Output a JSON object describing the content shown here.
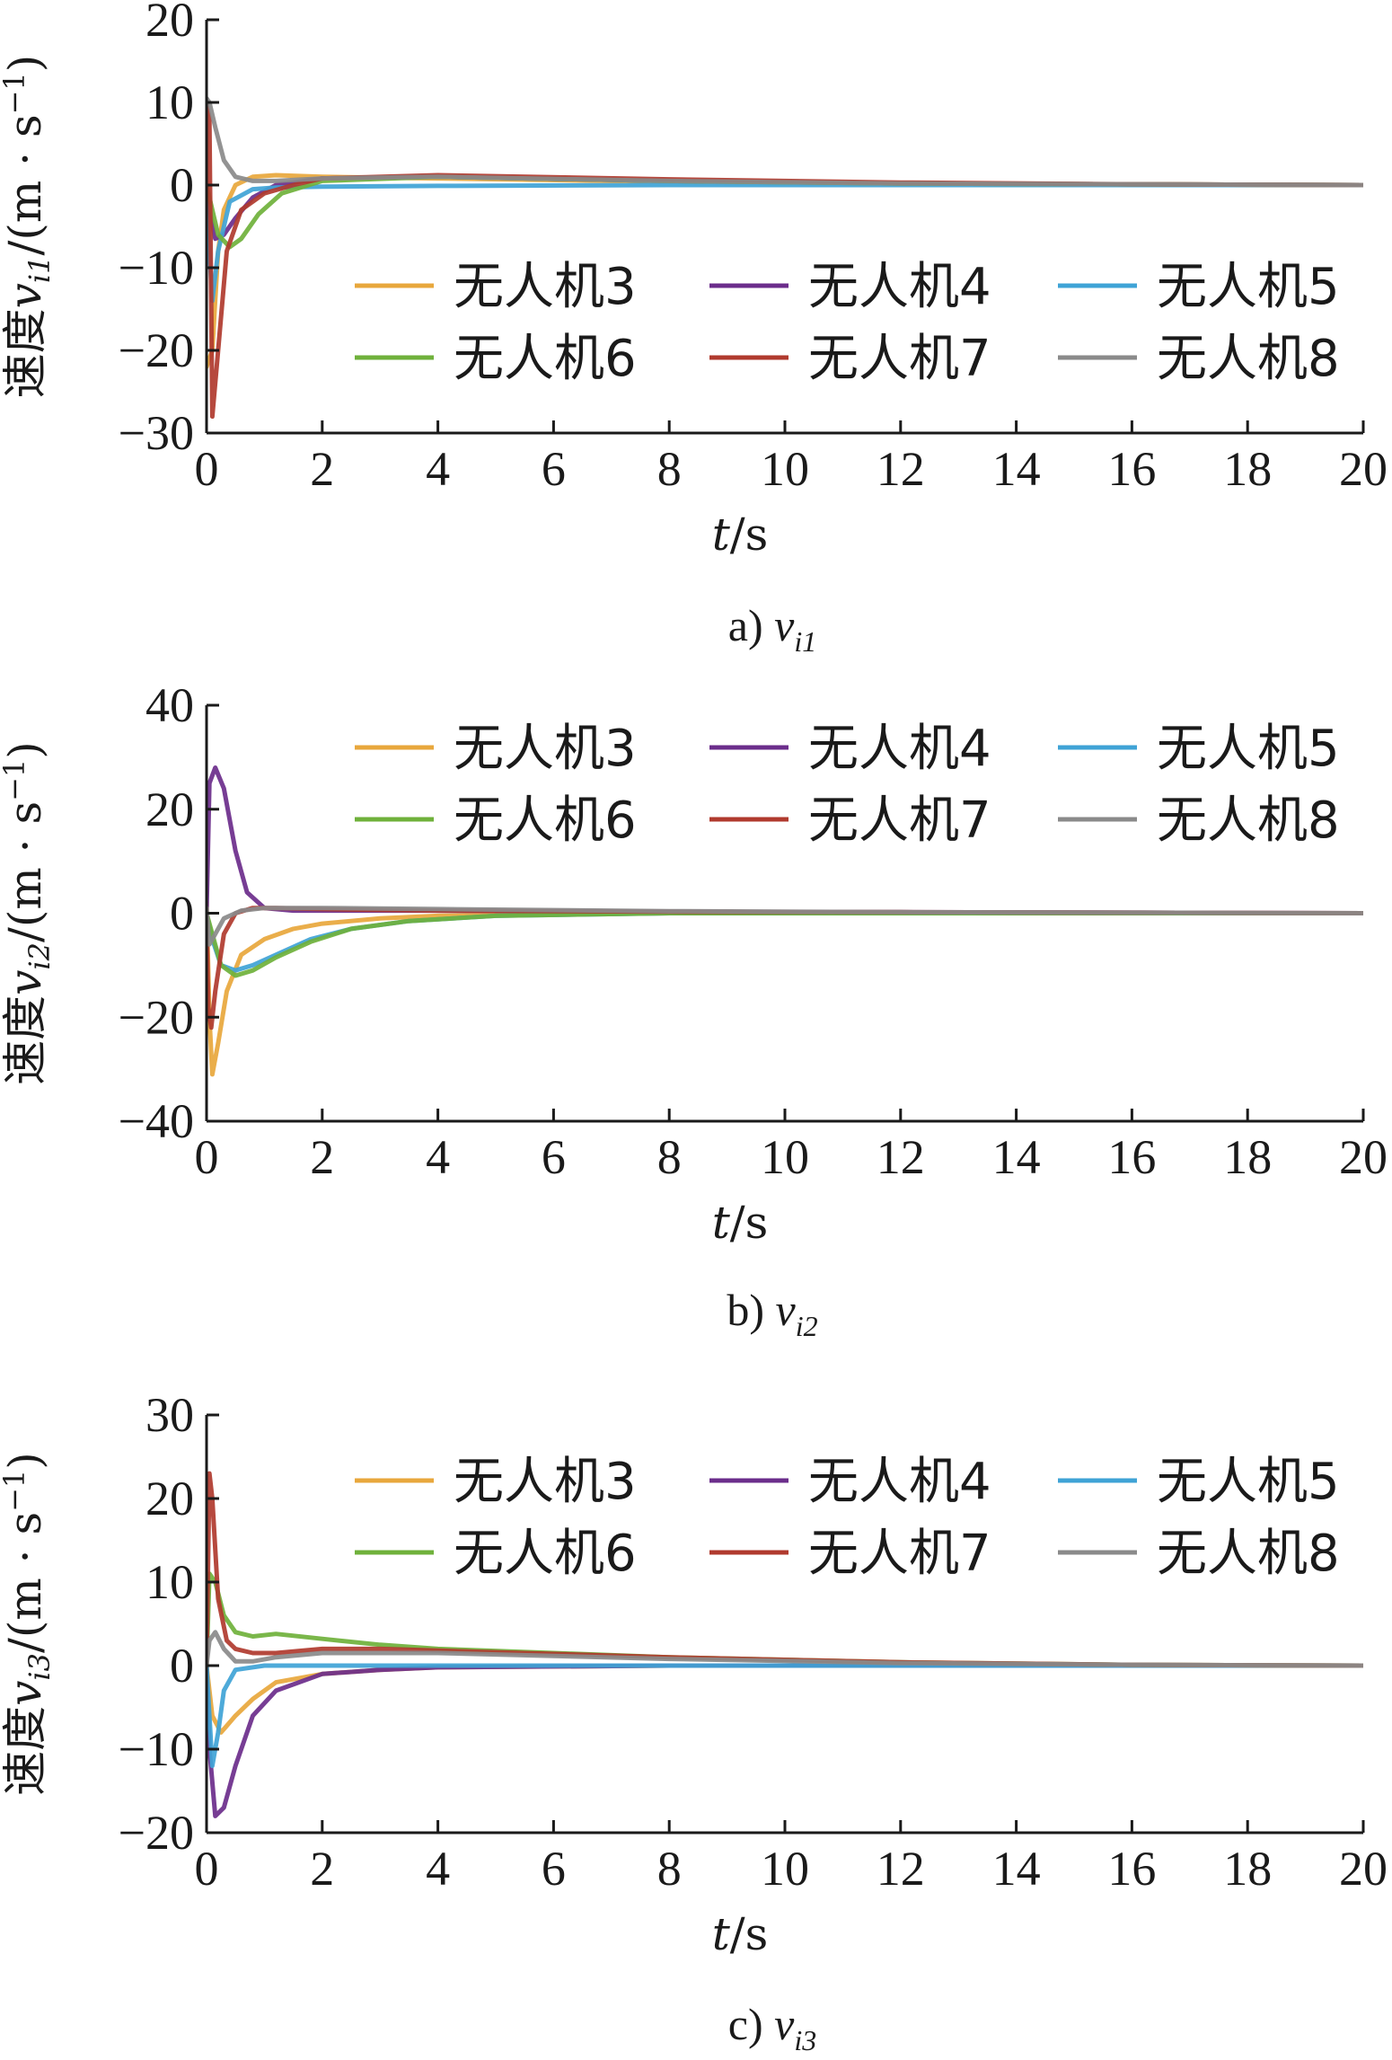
{
  "colors": {
    "uav3": "#e8a73c",
    "uav4": "#6b2d8b",
    "uav5": "#3fa3d6",
    "uav6": "#6fb13b",
    "uav7": "#b03a2e",
    "uav8": "#8a8a8a",
    "axis": "#1a1a1a"
  },
  "chart_data": [
    {
      "type": "line",
      "panel": "a",
      "caption_prefix": "a) ",
      "caption_var": "v",
      "caption_sub": "i1",
      "ylabel_prefix": "速度",
      "ylabel_var": "v",
      "ylabel_sub": "i1",
      "ylabel_unit": "/(m · s",
      "ylabel_unit_sup": "−1",
      "ylabel_close": ")",
      "xlabel_var": "t",
      "xlabel_unit": "/s",
      "xlim": [
        0,
        20
      ],
      "ylim": [
        -30,
        20
      ],
      "xticks": [
        "0",
        "2",
        "4",
        "6",
        "8",
        "10",
        "12",
        "14",
        "16",
        "18",
        "20"
      ],
      "yticks": [
        "−30",
        "−20",
        "−10",
        "0",
        "10",
        "20"
      ],
      "ytick_values": [
        -30,
        -20,
        -10,
        0,
        10,
        20
      ],
      "legend_position": "center-right",
      "series": [
        {
          "name": "无人机3",
          "color_key": "uav3",
          "x": [
            0,
            0.1,
            0.2,
            0.3,
            0.5,
            0.8,
            1.2,
            2,
            4,
            8,
            12,
            16,
            20
          ],
          "y": [
            -22,
            -20,
            -8,
            -3,
            0,
            1,
            1.2,
            1,
            0.8,
            0.4,
            0.2,
            0.1,
            0
          ]
        },
        {
          "name": "无人机4",
          "color_key": "uav4",
          "x": [
            0,
            0.05,
            0.15,
            0.3,
            0.5,
            0.8,
            1.2,
            2,
            4,
            8,
            12,
            16,
            20
          ],
          "y": [
            0,
            -3,
            -6.5,
            -6,
            -4,
            -1.5,
            0,
            0.8,
            1,
            0.5,
            0.2,
            0.1,
            0
          ]
        },
        {
          "name": "无人机5",
          "color_key": "uav5",
          "x": [
            0,
            0.05,
            0.1,
            0.2,
            0.4,
            0.8,
            1.2,
            2,
            4,
            8,
            12,
            16,
            20
          ],
          "y": [
            0,
            -8,
            -14,
            -8,
            -2,
            -0.5,
            -0.3,
            -0.2,
            -0.1,
            0,
            0,
            0,
            0
          ]
        },
        {
          "name": "无人机6",
          "color_key": "uav6",
          "x": [
            0,
            0.1,
            0.2,
            0.4,
            0.6,
            0.9,
            1.3,
            2,
            4,
            8,
            12,
            16,
            20
          ],
          "y": [
            0,
            -3,
            -6,
            -7.5,
            -6.5,
            -3.5,
            -1,
            0.5,
            1,
            0.5,
            0.2,
            0.1,
            0
          ]
        },
        {
          "name": "无人机7",
          "color_key": "uav7",
          "x": [
            0,
            0.05,
            0.1,
            0.2,
            0.35,
            0.6,
            1,
            1.5,
            2,
            4,
            8,
            12,
            16,
            20
          ],
          "y": [
            10,
            8,
            -28,
            -20,
            -8,
            -3,
            -1,
            0,
            0.8,
            1.2,
            0.7,
            0.3,
            0.1,
            0
          ]
        },
        {
          "name": "无人机8",
          "color_key": "uav8",
          "x": [
            0,
            0.05,
            0.15,
            0.3,
            0.5,
            0.8,
            1.2,
            2,
            4,
            8,
            12,
            16,
            20
          ],
          "y": [
            10.5,
            10,
            7,
            3,
            1,
            0.5,
            0.5,
            0.8,
            1,
            0.5,
            0.2,
            0.1,
            0
          ]
        }
      ]
    },
    {
      "type": "line",
      "panel": "b",
      "caption_prefix": "b) ",
      "caption_var": "v",
      "caption_sub": "i2",
      "ylabel_prefix": "速度",
      "ylabel_var": "v",
      "ylabel_sub": "i2",
      "ylabel_unit": "/(m · s",
      "ylabel_unit_sup": "−1",
      "ylabel_close": ")",
      "xlabel_var": "t",
      "xlabel_unit": "/s",
      "xlim": [
        0,
        20
      ],
      "ylim": [
        -40,
        40
      ],
      "xticks": [
        "0",
        "2",
        "4",
        "6",
        "8",
        "10",
        "12",
        "14",
        "16",
        "18",
        "20"
      ],
      "yticks": [
        "−40",
        "−20",
        "0",
        "20",
        "40"
      ],
      "ytick_values": [
        -40,
        -20,
        0,
        20,
        40
      ],
      "legend_position": "top-right",
      "series": [
        {
          "name": "无人机3",
          "color_key": "uav3",
          "x": [
            0,
            0.05,
            0.1,
            0.2,
            0.35,
            0.6,
            1,
            1.5,
            2,
            3,
            4,
            8,
            12,
            16,
            20
          ],
          "y": [
            2,
            -20,
            -31,
            -25,
            -15,
            -8,
            -5,
            -3,
            -2,
            -1,
            -0.5,
            0,
            0,
            0,
            0
          ]
        },
        {
          "name": "无人机4",
          "color_key": "uav4",
          "x": [
            0,
            0.05,
            0.15,
            0.3,
            0.5,
            0.7,
            1,
            1.5,
            2,
            4,
            8,
            12,
            16,
            20
          ],
          "y": [
            0,
            25,
            28,
            24,
            12,
            4,
            1,
            0.5,
            0.5,
            0.5,
            0.3,
            0.2,
            0.1,
            0
          ]
        },
        {
          "name": "无人机5",
          "color_key": "uav5",
          "x": [
            0,
            0.1,
            0.25,
            0.5,
            0.8,
            1.2,
            1.8,
            2.5,
            3.5,
            5,
            8,
            12,
            16,
            20
          ],
          "y": [
            0,
            -5,
            -10,
            -11,
            -10,
            -8,
            -5,
            -3,
            -1.5,
            -0.5,
            0,
            0,
            0,
            0
          ]
        },
        {
          "name": "无人机6",
          "color_key": "uav6",
          "x": [
            0,
            0.1,
            0.25,
            0.5,
            0.8,
            1.2,
            1.8,
            2.5,
            3.5,
            5,
            8,
            12,
            16,
            20
          ],
          "y": [
            0,
            -4,
            -10,
            -12,
            -11,
            -8.5,
            -5.5,
            -3,
            -1.5,
            -0.5,
            0,
            0,
            0,
            0
          ]
        },
        {
          "name": "无人机7",
          "color_key": "uav7",
          "x": [
            0,
            0.03,
            0.08,
            0.15,
            0.3,
            0.5,
            0.8,
            1.2,
            2,
            4,
            8,
            12,
            16,
            20
          ],
          "y": [
            0,
            -18,
            -22,
            -15,
            -4,
            0,
            1,
            1,
            0.8,
            0.5,
            0.3,
            0.2,
            0.1,
            0
          ]
        },
        {
          "name": "无人机8",
          "color_key": "uav8",
          "x": [
            0,
            0.05,
            0.15,
            0.3,
            0.6,
            1,
            2,
            4,
            8,
            12,
            16,
            20
          ],
          "y": [
            1,
            -6,
            -4,
            -1,
            0.5,
            1,
            1,
            0.8,
            0.4,
            0.2,
            0.1,
            0
          ]
        }
      ]
    },
    {
      "type": "line",
      "panel": "c",
      "caption_prefix": "c) ",
      "caption_var": "v",
      "caption_sub": "i3",
      "ylabel_prefix": "速度",
      "ylabel_var": "v",
      "ylabel_sub": "i3",
      "ylabel_unit": "/(m · s",
      "ylabel_unit_sup": "−1",
      "ylabel_close": ")",
      "xlabel_var": "t",
      "xlabel_unit": "/s",
      "xlim": [
        0,
        20
      ],
      "ylim": [
        -20,
        30
      ],
      "xticks": [
        "0",
        "2",
        "4",
        "6",
        "8",
        "10",
        "12",
        "14",
        "16",
        "18",
        "20"
      ],
      "yticks": [
        "−20",
        "−10",
        "0",
        "10",
        "20",
        "30"
      ],
      "ytick_values": [
        -20,
        -10,
        0,
        10,
        20,
        30
      ],
      "legend_position": "top-right",
      "series": [
        {
          "name": "无人机3",
          "color_key": "uav3",
          "x": [
            0,
            0.1,
            0.25,
            0.5,
            0.8,
            1.2,
            2,
            3,
            4,
            8,
            12,
            16,
            20
          ],
          "y": [
            0,
            -6,
            -8,
            -6,
            -4,
            -2,
            -1,
            -0.5,
            -0.2,
            0,
            0,
            0,
            0
          ]
        },
        {
          "name": "无人机4",
          "color_key": "uav4",
          "x": [
            0,
            0.05,
            0.15,
            0.3,
            0.5,
            0.8,
            1.2,
            2,
            3,
            4,
            8,
            12,
            16,
            20
          ],
          "y": [
            0,
            -10,
            -18,
            -17,
            -12,
            -6,
            -3,
            -1,
            -0.5,
            -0.2,
            0,
            0,
            0,
            0
          ]
        },
        {
          "name": "无人机5",
          "color_key": "uav5",
          "x": [
            0,
            0.05,
            0.1,
            0.2,
            0.3,
            0.5,
            1,
            2,
            4,
            8,
            12,
            16,
            20
          ],
          "y": [
            0,
            -6,
            -12,
            -8,
            -3,
            -0.5,
            0,
            0,
            0,
            0,
            0,
            0,
            0
          ]
        },
        {
          "name": "无人机6",
          "color_key": "uav6",
          "x": [
            0,
            0.05,
            0.15,
            0.3,
            0.5,
            0.8,
            1.2,
            2,
            3,
            4,
            6,
            8,
            12,
            16,
            20
          ],
          "y": [
            0,
            11,
            10,
            6,
            4,
            3.5,
            3.8,
            3.2,
            2.5,
            2,
            1.5,
            1,
            0.4,
            0.1,
            0
          ]
        },
        {
          "name": "无人机7",
          "color_key": "uav7",
          "x": [
            0,
            0.05,
            0.1,
            0.2,
            0.35,
            0.5,
            0.8,
            1.2,
            2,
            3,
            4,
            8,
            12,
            16,
            20
          ],
          "y": [
            0,
            23,
            20,
            8,
            3,
            2,
            1.5,
            1.5,
            2,
            2,
            1.8,
            1,
            0.4,
            0.1,
            0
          ]
        },
        {
          "name": "无人机8",
          "color_key": "uav8",
          "x": [
            0,
            0.05,
            0.15,
            0.3,
            0.5,
            0.8,
            1.2,
            2,
            3,
            4,
            8,
            12,
            16,
            20
          ],
          "y": [
            0,
            3,
            4,
            2,
            0.5,
            0.5,
            1,
            1.5,
            1.5,
            1.5,
            0.8,
            0.3,
            0.1,
            0
          ]
        }
      ]
    }
  ]
}
